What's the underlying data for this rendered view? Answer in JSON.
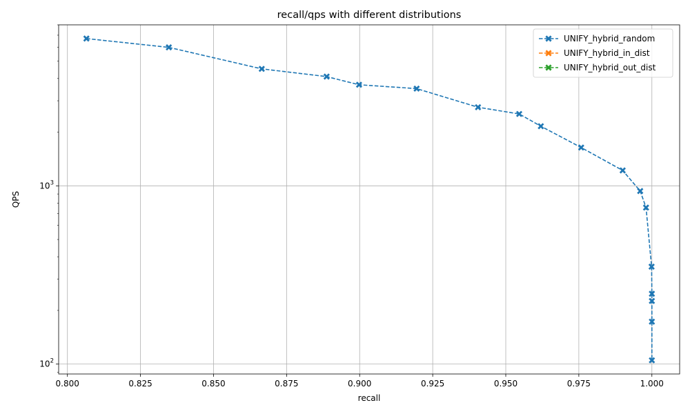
{
  "chart_data": {
    "type": "line",
    "title": "recall/qps with different distributions",
    "xlabel": "recall",
    "ylabel": "QPS",
    "xlim": [
      0.797,
      1.0095
    ],
    "ylim": [
      88,
      8000
    ],
    "yscale": "log",
    "grid": true,
    "legend_position": "top-right",
    "x_ticks": [
      0.8,
      0.825,
      0.85,
      0.875,
      0.9,
      0.925,
      0.95,
      0.975,
      1.0
    ],
    "x_tick_labels": [
      "0.800",
      "0.825",
      "0.850",
      "0.875",
      "0.900",
      "0.925",
      "0.950",
      "0.975",
      "1.000"
    ],
    "y_ticks": [
      100,
      1000
    ],
    "y_tick_labels": [
      [
        "10",
        "2"
      ],
      [
        "10",
        "3"
      ]
    ],
    "series": [
      {
        "name": "UNIFY_hybrid_random",
        "color": "#1f77b4",
        "x": [
          0.8065,
          0.8347,
          0.8665,
          0.8887,
          0.8998,
          0.9195,
          0.9405,
          0.9546,
          0.962,
          0.9758,
          0.99,
          0.996,
          0.998,
          0.9999,
          1.0,
          1.0,
          1.0,
          1.0
        ],
        "y": [
          6700,
          5980,
          4530,
          4100,
          3690,
          3510,
          2760,
          2530,
          2160,
          1640,
          1220,
          935,
          755,
          352,
          248,
          226,
          173,
          105
        ]
      },
      {
        "name": "UNIFY_hybrid_in_dist",
        "color": "#ff7f0e",
        "x": [],
        "y": []
      },
      {
        "name": "UNIFY_hybrid_out_dist",
        "color": "#2ca02c",
        "x": [],
        "y": []
      }
    ]
  }
}
